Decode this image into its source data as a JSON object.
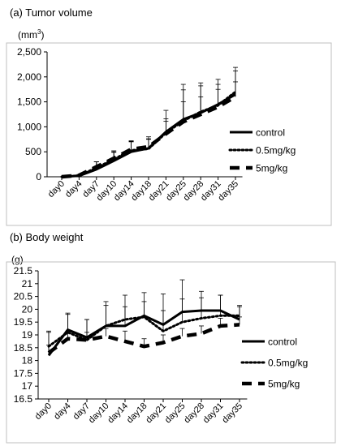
{
  "chart_data": [
    {
      "type": "line",
      "title": "(a) Tumor volume",
      "ylabel": "(mm3)",
      "ylabel_parts": {
        "base": "(mm",
        "sup": "3",
        "close": ")"
      },
      "ylim": [
        0,
        2500
      ],
      "yticks": [
        0,
        500,
        1000,
        1500,
        2000,
        2500
      ],
      "ytick_labels": [
        "0",
        "500",
        "1,000",
        "1,500",
        "2,000",
        "2,500"
      ],
      "categories": [
        "day0",
        "day4",
        "day7",
        "day10",
        "day14",
        "day18",
        "day21",
        "day25",
        "day28",
        "day31",
        "day35"
      ],
      "grid": false,
      "legend": "right",
      "series": [
        {
          "name": "control",
          "style": "solid",
          "values": [
            0,
            20,
            150,
            320,
            500,
            570,
            900,
            1150,
            1280,
            1450,
            1650
          ],
          "err": [
            0,
            15,
            150,
            200,
            220,
            230,
            430,
            700,
            600,
            500,
            540
          ]
        },
        {
          "name": "0.5mg/kg",
          "style": "dotted",
          "values": [
            0,
            25,
            180,
            350,
            530,
            560,
            880,
            1120,
            1300,
            1430,
            1700
          ],
          "err": [
            0,
            15,
            120,
            150,
            180,
            200,
            280,
            620,
            520,
            420,
            420
          ]
        },
        {
          "name": "5mg/kg",
          "style": "dashed",
          "values": [
            0,
            30,
            200,
            370,
            550,
            600,
            860,
            1100,
            1250,
            1400,
            1600
          ],
          "err": [
            0,
            15,
            100,
            120,
            150,
            150,
            250,
            400,
            350,
            350,
            300
          ]
        }
      ]
    },
    {
      "type": "line",
      "title": "(b) Body weight",
      "ylabel": "(g)",
      "ylim": [
        16.5,
        21.5
      ],
      "yticks": [
        16.5,
        17,
        17.5,
        18,
        18.5,
        19,
        19.5,
        20,
        20.5,
        21,
        21.5
      ],
      "ytick_labels": [
        "16.5",
        "17",
        "17.5",
        "18",
        "18.5",
        "19",
        "19.5",
        "20",
        "20.5",
        "21",
        "21.5"
      ],
      "categories": [
        "day0",
        "day4",
        "day7",
        "day10",
        "day14",
        "day18",
        "day21",
        "day25",
        "day28",
        "day31",
        "day35"
      ],
      "grid": false,
      "legend": "right",
      "series": [
        {
          "name": "control",
          "style": "solid",
          "values": [
            18.2,
            19.2,
            18.9,
            19.35,
            19.35,
            19.75,
            19.4,
            19.9,
            19.95,
            19.95,
            19.6
          ],
          "err": [
            0.9,
            0.6,
            0.7,
            0.95,
            1.2,
            0.9,
            1.2,
            1.25,
            0.75,
            0.6,
            0.55
          ]
        },
        {
          "name": "0.5mg/kg",
          "style": "dotted",
          "values": [
            18.55,
            19.1,
            18.8,
            19.35,
            19.6,
            19.7,
            19.15,
            19.5,
            19.65,
            19.75,
            19.75
          ],
          "err": [
            0.6,
            0.75,
            0.8,
            0.8,
            0.5,
            0.6,
            0.8,
            0.9,
            0.8,
            0.8,
            0.35
          ]
        },
        {
          "name": "5mg/kg",
          "style": "dashed",
          "values": [
            18.3,
            18.85,
            18.8,
            18.95,
            18.75,
            18.55,
            18.7,
            18.95,
            19.05,
            19.35,
            19.4
          ],
          "err": [
            0.3,
            0.3,
            0.3,
            0.3,
            0.4,
            0.3,
            0.3,
            0.3,
            0.3,
            0.3,
            0.3
          ]
        }
      ]
    }
  ]
}
